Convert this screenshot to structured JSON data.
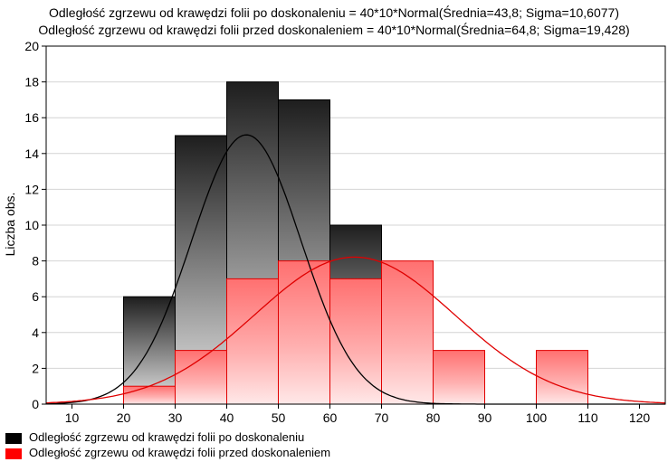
{
  "titles": {
    "line1": "Odległość zgrzewu od krawędzi folii po doskonaleniu = 40*10*Normal(Średnia=43,8; Sigma=10,6077)",
    "line2": "Odległość zgrzewu od krawędzi folii przed doskonaleniem = 40*10*Normal(Średnia=64,8; Sigma=19,428)"
  },
  "chart_data": {
    "type": "bar",
    "ylabel": "Liczba obs.",
    "xlim": [
      5,
      125
    ],
    "ylim": [
      0,
      20
    ],
    "xticks": [
      10,
      20,
      30,
      40,
      50,
      60,
      70,
      80,
      90,
      100,
      110,
      120
    ],
    "yticks": [
      0,
      2,
      4,
      6,
      8,
      10,
      12,
      14,
      16,
      18,
      20
    ],
    "bin_edges": [
      20,
      30,
      40,
      50,
      60,
      70,
      80,
      90,
      100,
      110
    ],
    "series": [
      {
        "name": "Odległość zgrzewu od krawędzi folii po doskonaleniu",
        "color": "#000000",
        "values": [
          6,
          15,
          18,
          17,
          10,
          0,
          0,
          0,
          0
        ],
        "fit": {
          "scale": 400,
          "mean": 43.8,
          "sigma": 10.6077
        }
      },
      {
        "name": "Odległość zgrzewu od krawędzi folii przed doskonaleniem",
        "color": "#ff0000",
        "values": [
          1,
          3,
          7,
          8,
          7,
          8,
          3,
          0,
          3
        ],
        "fit": {
          "scale": 400,
          "mean": 64.8,
          "sigma": 19.428
        }
      }
    ],
    "grid": true,
    "legend": "bottom-left"
  }
}
